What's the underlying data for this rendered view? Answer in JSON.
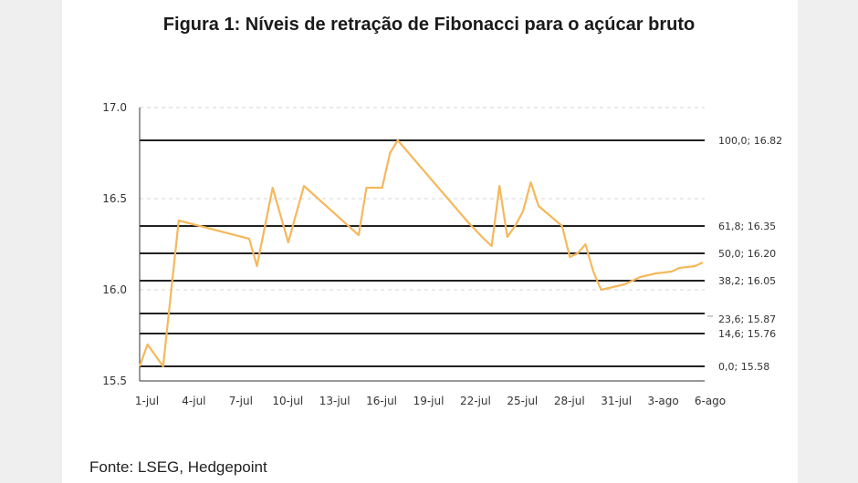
{
  "chart_data": {
    "type": "line",
    "title": "Figura 1: Níveis de retração de Fibonacci para o açúcar bruto",
    "source": "Fonte: LSEG, Hedgepoint",
    "xlabel": "",
    "ylabel": "",
    "ylim": [
      15.5,
      17.0
    ],
    "y_ticks": [
      "17.0",
      "16.5",
      "16.0",
      "15.5"
    ],
    "y_tick_values": [
      17.0,
      16.5,
      16.0,
      15.5
    ],
    "x_ticks": [
      "1-jul",
      "4-jul",
      "7-jul",
      "10-jul",
      "13-jul",
      "16-jul",
      "19-jul",
      "22-jul",
      "25-jul",
      "28-jul",
      "31-jul",
      "3-ago",
      "6-ago"
    ],
    "x_range": [
      1,
      37
    ],
    "grid": "horizontal-dashed",
    "line_color": "#f5b85c",
    "level_color": "#222222",
    "series": [
      {
        "x": [
          1,
          1.5,
          2.5,
          3.5,
          8,
          8.5,
          9.5,
          10.5,
          11.5,
          15,
          15.5,
          16.5,
          17,
          17.5,
          22,
          23,
          23.5,
          24,
          24.5,
          25,
          25.5,
          26,
          26.5,
          28,
          28.5,
          29,
          29.5,
          30,
          30.5,
          32,
          32.5,
          33,
          34,
          35,
          35.5,
          36.5,
          37
        ],
        "values": [
          15.58,
          15.7,
          15.58,
          16.38,
          16.28,
          16.13,
          16.56,
          16.26,
          16.57,
          16.3,
          16.56,
          16.56,
          16.75,
          16.82,
          16.37,
          16.28,
          16.24,
          16.57,
          16.29,
          16.35,
          16.43,
          16.59,
          16.46,
          16.35,
          16.18,
          16.2,
          16.25,
          16.1,
          16.0,
          16.03,
          16.05,
          16.07,
          16.09,
          16.1,
          16.12,
          16.13,
          16.15
        ]
      }
    ],
    "levels": [
      {
        "value": 16.82,
        "label": "100,0; 16.82"
      },
      {
        "value": 16.35,
        "label": "61,8; 16.35"
      },
      {
        "value": 16.2,
        "label": "50,0; 16.20"
      },
      {
        "value": 16.05,
        "label": "38,2; 16.05"
      },
      {
        "value": 15.87,
        "label": "23,6; 15.87"
      },
      {
        "value": 15.76,
        "label": "14,6; 15.76"
      },
      {
        "value": 15.58,
        "label": "0,0; 15.58"
      }
    ]
  }
}
